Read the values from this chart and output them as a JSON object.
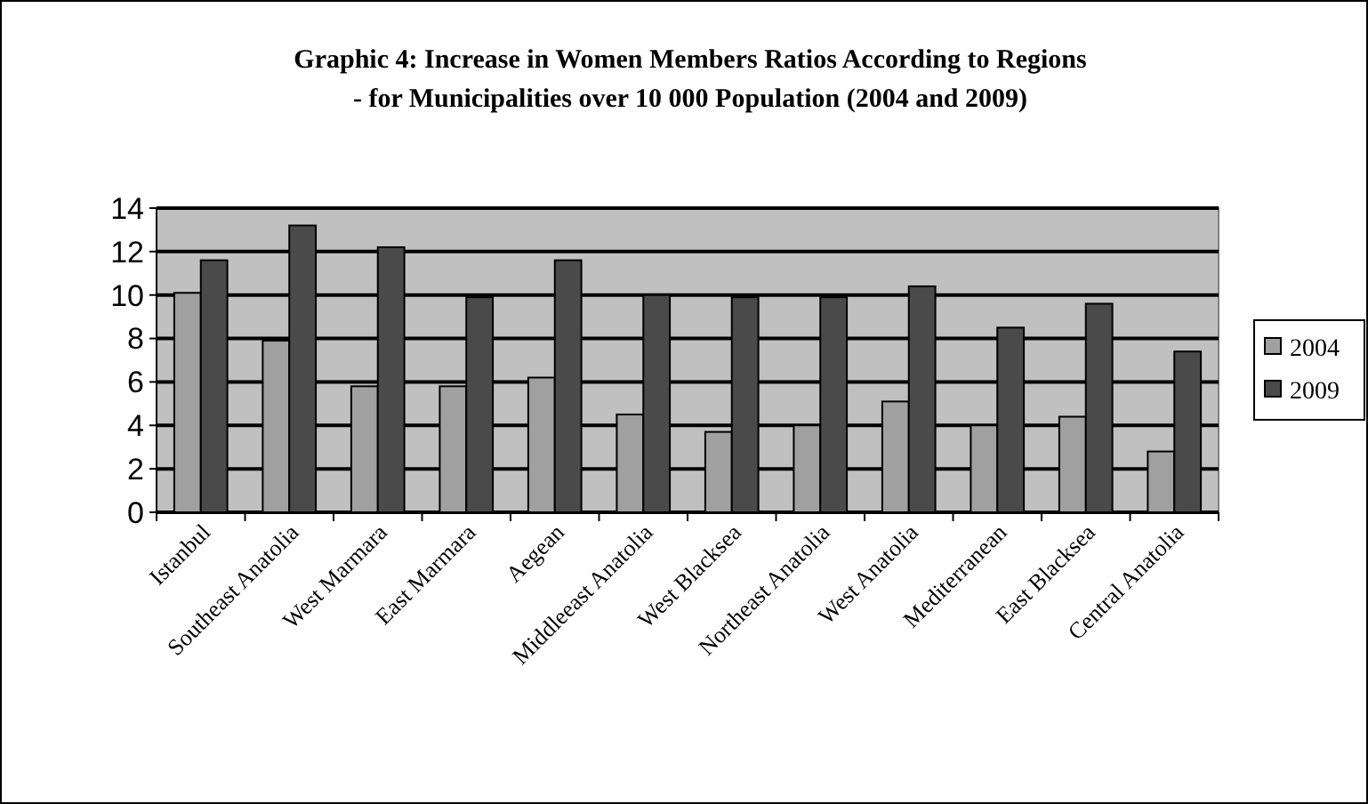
{
  "chart_data": {
    "type": "bar",
    "title": "Graphic 4: Increase in Women Members Ratios According to Regions\n- for Municipalities over 10 000 Population (2004 and 2009)",
    "categories": [
      "Istanbul",
      "Southeast Anatolia",
      "West Marmara",
      "East Marmara",
      "Aegean",
      "Middleeast Anatolia",
      "West Blacksea",
      "Northeast Anatolia",
      "West Anatolia",
      "Mediterranean",
      "East Blacksea",
      "Central Anatolia"
    ],
    "series": [
      {
        "name": "2004",
        "color": "#a0a0a0",
        "values": [
          10.1,
          7.9,
          5.8,
          5.8,
          6.2,
          4.5,
          3.7,
          4.0,
          5.1,
          4.0,
          4.4,
          2.8
        ]
      },
      {
        "name": "2009",
        "color": "#4a4a4a",
        "values": [
          11.6,
          13.2,
          12.2,
          9.9,
          11.6,
          10.0,
          9.9,
          9.9,
          10.4,
          8.5,
          9.6,
          7.4
        ]
      }
    ],
    "ylim": [
      0,
      14
    ],
    "yticks": [
      0,
      2,
      4,
      6,
      8,
      10,
      12,
      14
    ],
    "grid": "y",
    "legend": "right"
  }
}
